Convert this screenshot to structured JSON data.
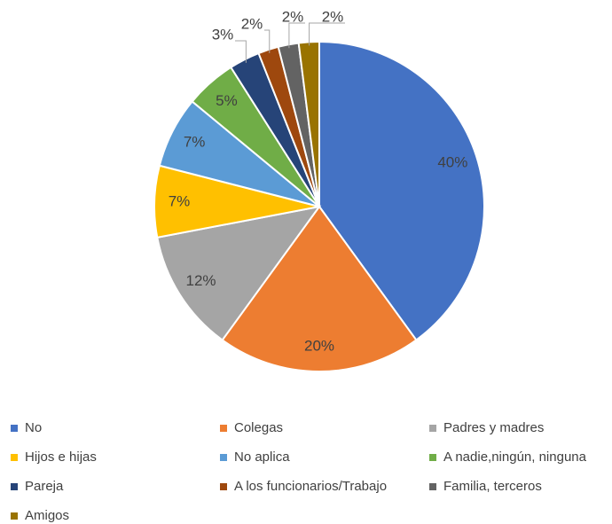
{
  "chart_data": {
    "type": "pie",
    "categories": [
      "No",
      "Colegas",
      "Padres y madres",
      "Hijos e hijas",
      "No aplica",
      "A nadie,ningún, ninguna",
      "Pareja",
      "A los funcionarios/Trabajo",
      "Familia, terceros",
      "Amigos"
    ],
    "values": [
      40,
      20,
      12,
      7,
      7,
      5,
      3,
      2,
      2,
      2
    ],
    "value_labels": [
      "40%",
      "20%",
      "12%",
      "7%",
      "7%",
      "5%",
      "3%",
      "2%",
      "2%",
      "2%"
    ],
    "colors": [
      "#4472c4",
      "#ed7d31",
      "#a5a5a5",
      "#ffc000",
      "#5b9bd5",
      "#70ad47",
      "#264478",
      "#9e480e",
      "#636363",
      "#997300"
    ],
    "legend": "bottom"
  }
}
